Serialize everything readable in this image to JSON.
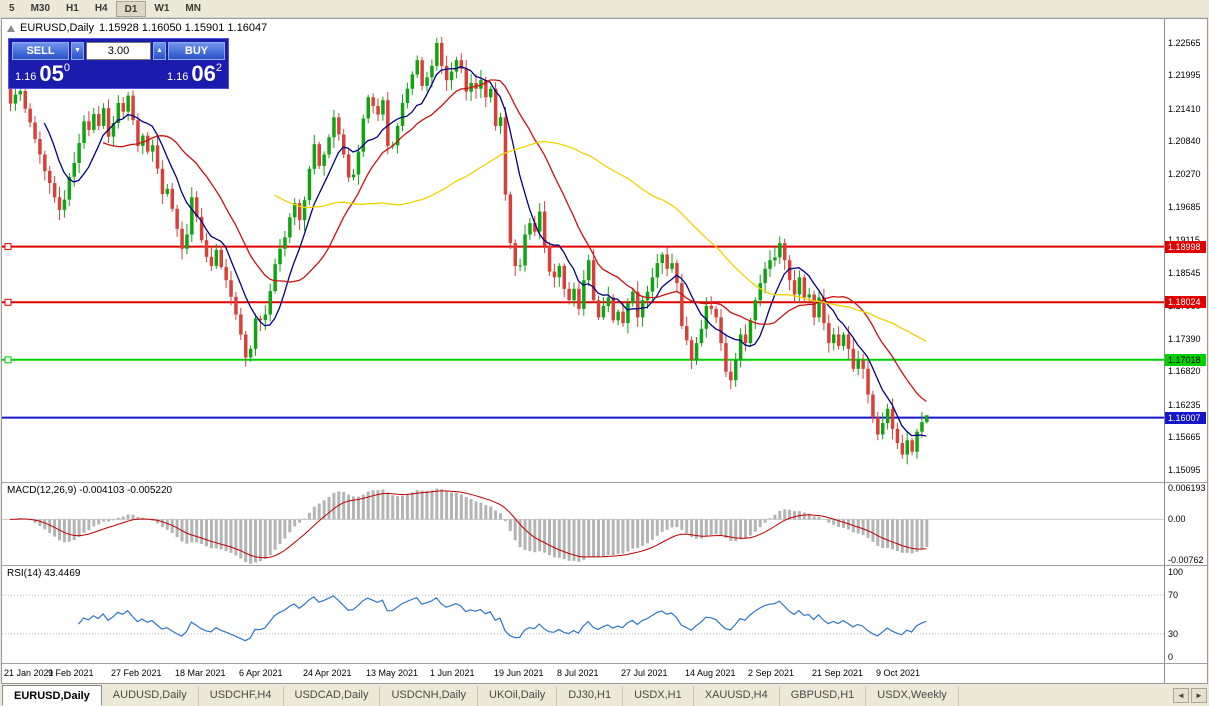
{
  "toolbar": {
    "timeframes": [
      "5",
      "M30",
      "H1",
      "H4",
      "D1",
      "W1",
      "MN"
    ],
    "active": "D1"
  },
  "chart": {
    "symbol_title": "EURUSD,Daily",
    "ohlc_text": "1.15928 1.16050 1.15901 1.16047"
  },
  "trade_panel": {
    "sell_label": "SELL",
    "buy_label": "BUY",
    "volume": "3.00",
    "spin_down_glyph": "▼",
    "spin_up_glyph": "▲",
    "sell_price": {
      "main": "1.16",
      "pips": "05",
      "sup": "0"
    },
    "buy_price": {
      "main": "1.16",
      "pips": "06",
      "sup": "2"
    }
  },
  "colors": {
    "up": "#12A312",
    "down": "#D6413A",
    "macd_hist": "#B4B4B4",
    "macd_signal": "#C00000",
    "rsi_line": "#2E75C8"
  },
  "moving_averages": [
    {
      "name": "ma-fast-navy",
      "period": 8,
      "color": "#000084"
    },
    {
      "name": "ma-mid-red",
      "period": 20,
      "color": "#CC1111"
    },
    {
      "name": "ma-slow-yellow",
      "period": 55,
      "color": "#EFD400"
    }
  ],
  "price_axis": {
    "top_price": 1.2298,
    "bottom_price": 1.1488,
    "ticks": [
      1.22565,
      1.21995,
      1.2141,
      1.2084,
      1.2027,
      1.19685,
      1.19115,
      1.18545,
      1.1796,
      1.1739,
      1.1682,
      1.16235,
      1.15665,
      1.15095
    ]
  },
  "hlines": [
    {
      "price": 1.18998,
      "label": "1.18998",
      "color": "#E00000",
      "text_color": "#FFFFFF",
      "handle": true
    },
    {
      "price": 1.18024,
      "label": "1.18024",
      "color": "#E00000",
      "text_color": "#FFFFFF",
      "handle": true
    },
    {
      "price": 1.17018,
      "label": "1.17018",
      "color": "#00D000",
      "text_color": "#000000",
      "handle": true
    },
    {
      "price": 1.16007,
      "label": "1.16007",
      "color": "#1414C8",
      "text_color": "#FFFFFF",
      "handle": false
    }
  ],
  "macd": {
    "label": "MACD(12,26,9)",
    "values": "-0.004103 -0.005220",
    "fast": 12,
    "slow": 26,
    "signal": 9,
    "scale_max": 0.0068,
    "scale_min": -0.0085,
    "axis_ticks": [
      {
        "value": 0.006193,
        "text": "0.006193"
      },
      {
        "value": 0,
        "text": "0.00"
      },
      {
        "value": -0.00762,
        "text": "-0.00762"
      }
    ]
  },
  "rsi": {
    "label": "RSI(14)",
    "value": "43.4469",
    "period": 14,
    "levels": [
      70,
      30
    ],
    "axis_ticks": [
      {
        "value": 100,
        "text": "100"
      },
      {
        "value": 70,
        "text": "70"
      },
      {
        "value": 30,
        "text": "30"
      },
      {
        "value": 0,
        "text": "0"
      }
    ]
  },
  "tabs": {
    "active_index": 0,
    "nav_left": "◄",
    "nav_right": "►",
    "items": [
      "EURUSD,Daily",
      "AUDUSD,Daily",
      "USDCHF,H4",
      "USDCAD,Daily",
      "USDCNH,Daily",
      "UKOil,Daily",
      "DJ30,H1",
      "USDX,H1",
      "XAUUSD,H4",
      "GBPUSD,H1",
      "USDX,Weekly"
    ]
  },
  "chart_data": {
    "type": "candlestick",
    "symbol": "EURUSD",
    "timeframe": "Daily",
    "last_candle": {
      "open": 1.15928,
      "high": 1.1605,
      "low": 1.15901,
      "close": 1.16047
    },
    "closes": [
      1.215,
      1.2166,
      1.2172,
      1.2141,
      1.2117,
      1.2088,
      1.2061,
      1.2032,
      1.2011,
      1.1986,
      1.1964,
      1.1982,
      1.2022,
      1.2046,
      1.2081,
      1.2119,
      1.2104,
      1.2132,
      1.2111,
      1.2142,
      1.2092,
      1.2116,
      1.2151,
      1.2136,
      1.2164,
      1.2121,
      1.2076,
      1.2094,
      1.2066,
      1.2077,
      1.2036,
      1.1992,
      1.2001,
      1.1966,
      1.1931,
      1.1896,
      1.1921,
      1.1986,
      1.1952,
      1.1911,
      1.1882,
      1.1866,
      1.1894,
      1.1864,
      1.1841,
      1.1812,
      1.1781,
      1.1746,
      1.1706,
      1.1721,
      1.1774,
      1.1771,
      1.1781,
      1.1822,
      1.1869,
      1.1896,
      1.1916,
      1.1951,
      1.1976,
      1.1946,
      1.1981,
      1.2036,
      1.2079,
      1.2041,
      1.2061,
      1.2091,
      1.2126,
      1.2096,
      1.2061,
      1.2021,
      1.2026,
      1.2066,
      1.2124,
      1.2161,
      1.2146,
      1.2131,
      1.2156,
      1.2076,
      1.2077,
      1.2111,
      1.2151,
      1.2176,
      1.2201,
      1.2226,
      1.2181,
      1.2196,
      1.2216,
      1.2256,
      1.2216,
      1.2191,
      1.2206,
      1.2226,
      1.2211,
      1.2171,
      1.2186,
      1.2176,
      1.2191,
      1.2161,
      1.2176,
      1.2111,
      1.2126,
      1.1991,
      1.1906,
      1.1866,
      1.1867,
      1.1921,
      1.1941,
      1.1926,
      1.1961,
      1.1901,
      1.1856,
      1.1846,
      1.1866,
      1.1826,
      1.1806,
      1.1826,
      1.1791,
      1.1841,
      1.1876,
      1.1806,
      1.1776,
      1.1796,
      1.1811,
      1.1771,
      1.1786,
      1.1766,
      1.1801,
      1.1821,
      1.1776,
      1.1806,
      1.1821,
      1.1846,
      1.1871,
      1.1886,
      1.1861,
      1.1871,
      1.1836,
      1.1761,
      1.1736,
      1.1701,
      1.1731,
      1.1756,
      1.1796,
      1.1791,
      1.1776,
      1.1731,
      1.1681,
      1.1666,
      1.1701,
      1.1746,
      1.1731,
      1.1771,
      1.1806,
      1.1836,
      1.1861,
      1.1876,
      1.1881,
      1.1906,
      1.1876,
      1.1841,
      1.1816,
      1.1846,
      1.1811,
      1.1816,
      1.1776,
      1.1811,
      1.1766,
      1.1731,
      1.1746,
      1.1726,
      1.1746,
      1.1721,
      1.1686,
      1.1701,
      1.1686,
      1.1641,
      1.1601,
      1.1571,
      1.1591,
      1.1616,
      1.1581,
      1.1556,
      1.1536,
      1.1561,
      1.1541,
      1.1576,
      1.15928,
      1.16047
    ],
    "x_labels": [
      {
        "bar": 0,
        "text": "21 Jan 2021"
      },
      {
        "bar": 13,
        "text": "9 Feb 2021"
      },
      {
        "bar": 26,
        "text": "27 Feb 2021"
      },
      {
        "bar": 39,
        "text": "18 Mar 2021"
      },
      {
        "bar": 52,
        "text": "6 Apr 2021"
      },
      {
        "bar": 65,
        "text": "24 Apr 2021"
      },
      {
        "bar": 78,
        "text": "13 May 2021"
      },
      {
        "bar": 91,
        "text": "1 Jun 2021"
      },
      {
        "bar": 104,
        "text": "19 Jun 2021"
      },
      {
        "bar": 117,
        "text": "8 Jul 2021"
      },
      {
        "bar": 130,
        "text": "27 Jul 2021"
      },
      {
        "bar": 143,
        "text": "14 Aug 2021"
      },
      {
        "bar": 156,
        "text": "2 Sep 2021"
      },
      {
        "bar": 169,
        "text": "21 Sep 2021"
      },
      {
        "bar": 182,
        "text": "9 Oct 2021"
      }
    ]
  }
}
